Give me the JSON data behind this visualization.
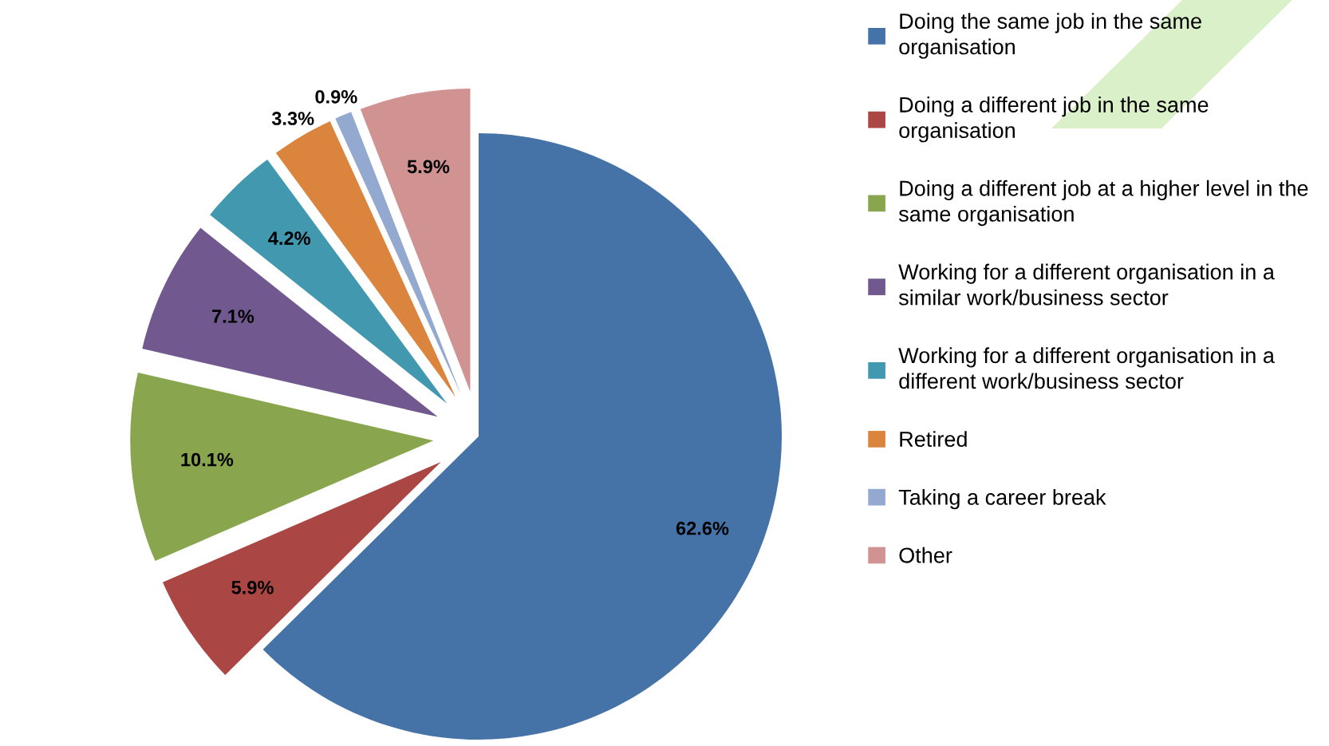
{
  "chart_data": {
    "type": "pie",
    "categories": [
      "Doing the same job in the same organisation",
      "Doing a different job in the same organisation",
      "Doing a different job at a higher level in the same organisation",
      "Working for a different organisation in a similar work/business sector",
      "Working for a different organisation in a different work/business sector",
      "Retired",
      "Taking a career break",
      "Other"
    ],
    "values": [
      62.6,
      5.9,
      10.1,
      7.1,
      4.2,
      3.3,
      0.9,
      5.9
    ],
    "value_labels": [
      "62.6%",
      "5.9%",
      "10.1%",
      "7.1%",
      "4.2%",
      "3.3%",
      "0.9%",
      "5.9%"
    ],
    "colors": [
      "#4572a7",
      "#aa4643",
      "#89a54e",
      "#71588f",
      "#4198af",
      "#db843d",
      "#93a9cf",
      "#d19392"
    ],
    "legend": "right"
  }
}
